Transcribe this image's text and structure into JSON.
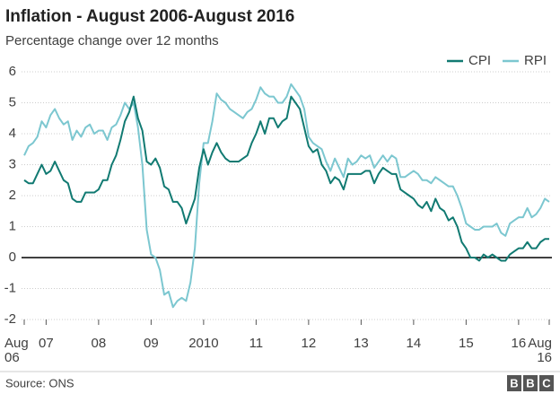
{
  "chart_data": {
    "type": "line",
    "title": "Inflation - August 2006-August 2016",
    "subtitle": "Percentage change over 12 months",
    "source": "Source: ONS",
    "logo": [
      "B",
      "B",
      "C"
    ],
    "categories": [
      "Aug 06",
      null,
      null,
      null,
      null,
      "07",
      null,
      null,
      null,
      null,
      null,
      null,
      null,
      null,
      null,
      null,
      null,
      "08",
      null,
      null,
      null,
      null,
      null,
      null,
      null,
      null,
      null,
      null,
      null,
      "09",
      null,
      null,
      null,
      null,
      null,
      null,
      null,
      null,
      null,
      null,
      null,
      "2010",
      null,
      null,
      null,
      null,
      null,
      null,
      null,
      null,
      null,
      null,
      null,
      "11",
      null,
      null,
      null,
      null,
      null,
      null,
      null,
      null,
      null,
      null,
      null,
      "12",
      null,
      null,
      null,
      null,
      null,
      null,
      null,
      null,
      null,
      null,
      null,
      "13",
      null,
      null,
      null,
      null,
      null,
      null,
      null,
      null,
      null,
      null,
      null,
      "14",
      null,
      null,
      null,
      null,
      null,
      null,
      null,
      null,
      null,
      null,
      null,
      "15",
      null,
      null,
      null,
      null,
      null,
      null,
      null,
      null,
      null,
      null,
      null,
      "16",
      null,
      null,
      null,
      null,
      null,
      null,
      "Aug 16"
    ],
    "series": [
      {
        "name": "CPI",
        "color": "#117a72",
        "values": [
          2.5,
          2.4,
          2.4,
          2.7,
          3.0,
          2.7,
          2.8,
          3.1,
          2.8,
          2.5,
          2.4,
          1.9,
          1.8,
          1.8,
          2.1,
          2.1,
          2.1,
          2.2,
          2.5,
          2.5,
          3.0,
          3.3,
          3.8,
          4.4,
          4.7,
          5.2,
          4.5,
          4.1,
          3.1,
          3.0,
          3.2,
          2.9,
          2.3,
          2.2,
          1.8,
          1.8,
          1.6,
          1.1,
          1.5,
          1.9,
          2.9,
          3.5,
          3.0,
          3.4,
          3.7,
          3.4,
          3.2,
          3.1,
          3.1,
          3.1,
          3.2,
          3.3,
          3.7,
          4.0,
          4.4,
          4.0,
          4.5,
          4.5,
          4.2,
          4.4,
          4.5,
          5.2,
          5.0,
          4.8,
          4.2,
          3.6,
          3.4,
          3.5,
          3.0,
          2.8,
          2.4,
          2.6,
          2.5,
          2.2,
          2.7,
          2.7,
          2.7,
          2.7,
          2.8,
          2.8,
          2.4,
          2.7,
          2.9,
          2.8,
          2.7,
          2.7,
          2.2,
          2.1,
          2.0,
          1.9,
          1.7,
          1.6,
          1.8,
          1.5,
          1.9,
          1.6,
          1.5,
          1.2,
          1.3,
          1.0,
          0.5,
          0.3,
          0.0,
          0.0,
          -0.1,
          0.1,
          0.0,
          0.1,
          0.0,
          -0.1,
          -0.1,
          0.1,
          0.2,
          0.3,
          0.3,
          0.5,
          0.3,
          0.3,
          0.5,
          0.6,
          0.6
        ]
      },
      {
        "name": "RPI",
        "color": "#7cc7d0",
        "values": [
          3.3,
          3.6,
          3.7,
          3.9,
          4.4,
          4.2,
          4.6,
          4.8,
          4.5,
          4.3,
          4.4,
          3.8,
          4.1,
          3.9,
          4.2,
          4.3,
          4.0,
          4.1,
          4.1,
          3.8,
          4.2,
          4.3,
          4.6,
          5.0,
          4.8,
          5.0,
          4.2,
          3.0,
          0.9,
          0.1,
          0.0,
          -0.4,
          -1.2,
          -1.1,
          -1.6,
          -1.4,
          -1.3,
          -1.4,
          -0.8,
          0.3,
          2.4,
          3.7,
          3.7,
          4.4,
          5.3,
          5.1,
          5.0,
          4.8,
          4.7,
          4.6,
          4.5,
          4.7,
          4.8,
          5.1,
          5.5,
          5.3,
          5.2,
          5.2,
          5.0,
          5.0,
          5.2,
          5.6,
          5.4,
          5.2,
          4.8,
          3.9,
          3.7,
          3.6,
          3.5,
          3.1,
          2.8,
          3.2,
          2.9,
          2.6,
          3.2,
          3.0,
          3.1,
          3.3,
          3.2,
          3.3,
          2.9,
          3.1,
          3.3,
          3.1,
          3.3,
          3.2,
          2.6,
          2.6,
          2.7,
          2.8,
          2.7,
          2.5,
          2.5,
          2.4,
          2.6,
          2.5,
          2.4,
          2.3,
          2.3,
          2.0,
          1.6,
          1.1,
          1.0,
          0.9,
          0.9,
          1.0,
          1.0,
          1.0,
          1.1,
          0.8,
          0.7,
          1.1,
          1.2,
          1.3,
          1.3,
          1.6,
          1.3,
          1.4,
          1.6,
          1.9,
          1.8
        ]
      }
    ],
    "ylim": [
      -2,
      6
    ],
    "yticks": [
      -2,
      -1,
      0,
      1,
      2,
      3,
      4,
      5,
      6
    ],
    "grid": true,
    "legend": "top-right"
  }
}
